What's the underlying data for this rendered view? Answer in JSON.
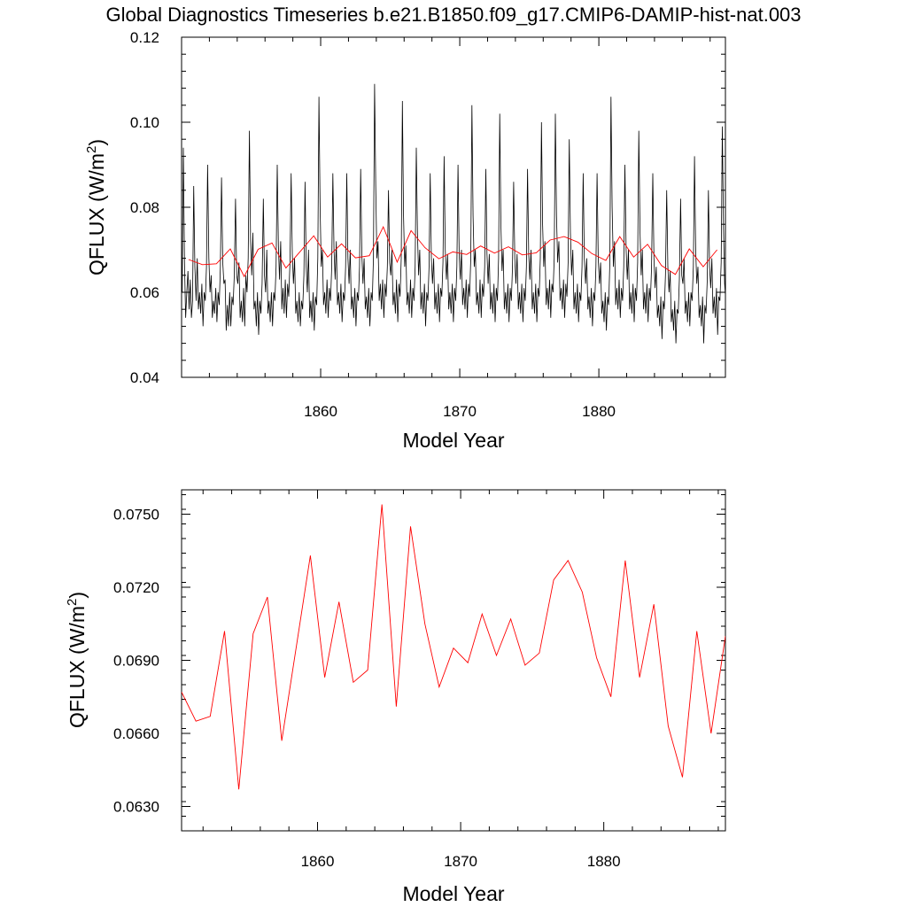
{
  "title": "Global Diagnostics Timeseries b.e21.B1850.f09_g17.CMIP6-DAMIP-hist-nat.003",
  "colors": {
    "monthly": "#000000",
    "annual": "#ff0000"
  },
  "chart_data": [
    {
      "type": "line",
      "xlabel": "Model Year",
      "ylabel": "QFLUX (W/m2)",
      "ylabel_main": "QFLUX (W/m",
      "ylabel_sup": "2",
      "ylabel_close": ")",
      "xlim": [
        1850,
        1889.1
      ],
      "ylim": [
        0.04,
        0.12
      ],
      "xticks": [
        1860,
        1870,
        1880
      ],
      "xtick_labels": [
        "1860",
        "1870",
        "1880"
      ],
      "yticks": [
        0.04,
        0.06,
        0.08,
        0.1,
        0.12
      ],
      "ytick_labels": [
        "0.04",
        "0.06",
        "0.08",
        "0.10",
        "0.12"
      ],
      "grid": false,
      "series": [
        {
          "style": "monthly",
          "values": [
            0.06,
            0.094,
            0.067,
            0.054,
            0.06,
            0.065,
            0.056,
            0.063,
            0.054,
            0.058,
            0.085,
            0.066,
            0.058,
            0.068,
            0.056,
            0.06,
            0.055,
            0.062,
            0.052,
            0.06,
            0.058,
            0.066,
            0.09,
            0.068,
            0.06,
            0.064,
            0.054,
            0.058,
            0.055,
            0.061,
            0.053,
            0.06,
            0.057,
            0.066,
            0.087,
            0.067,
            0.062,
            0.063,
            0.051,
            0.057,
            0.052,
            0.06,
            0.052,
            0.059,
            0.057,
            0.064,
            0.082,
            0.064,
            0.062,
            0.067,
            0.054,
            0.058,
            0.053,
            0.061,
            0.052,
            0.064,
            0.06,
            0.068,
            0.098,
            0.072,
            0.064,
            0.074,
            0.056,
            0.058,
            0.052,
            0.06,
            0.05,
            0.058,
            0.055,
            0.062,
            0.082,
            0.064,
            0.06,
            0.07,
            0.055,
            0.058,
            0.053,
            0.06,
            0.052,
            0.06,
            0.058,
            0.066,
            0.09,
            0.071,
            0.063,
            0.072,
            0.056,
            0.061,
            0.055,
            0.063,
            0.054,
            0.062,
            0.059,
            0.067,
            0.088,
            0.069,
            0.062,
            0.068,
            0.055,
            0.058,
            0.053,
            0.06,
            0.052,
            0.058,
            0.056,
            0.064,
            0.086,
            0.066,
            0.06,
            0.07,
            0.054,
            0.058,
            0.053,
            0.06,
            0.051,
            0.059,
            0.057,
            0.068,
            0.106,
            0.08,
            0.066,
            0.07,
            0.057,
            0.06,
            0.055,
            0.063,
            0.054,
            0.061,
            0.058,
            0.066,
            0.088,
            0.07,
            0.063,
            0.072,
            0.057,
            0.06,
            0.055,
            0.062,
            0.053,
            0.06,
            0.058,
            0.066,
            0.088,
            0.068,
            0.062,
            0.07,
            0.056,
            0.059,
            0.054,
            0.061,
            0.052,
            0.06,
            0.058,
            0.066,
            0.089,
            0.069,
            0.062,
            0.068,
            0.056,
            0.059,
            0.054,
            0.061,
            0.052,
            0.06,
            0.058,
            0.068,
            0.109,
            0.085,
            0.068,
            0.072,
            0.058,
            0.062,
            0.056,
            0.063,
            0.054,
            0.062,
            0.059,
            0.066,
            0.084,
            0.067,
            0.064,
            0.07,
            0.057,
            0.06,
            0.055,
            0.063,
            0.053,
            0.062,
            0.059,
            0.068,
            0.105,
            0.078,
            0.066,
            0.071,
            0.057,
            0.06,
            0.055,
            0.063,
            0.054,
            0.061,
            0.058,
            0.066,
            0.094,
            0.074,
            0.064,
            0.07,
            0.056,
            0.06,
            0.055,
            0.062,
            0.052,
            0.06,
            0.058,
            0.066,
            0.088,
            0.068,
            0.062,
            0.068,
            0.056,
            0.06,
            0.055,
            0.062,
            0.053,
            0.061,
            0.059,
            0.067,
            0.092,
            0.07,
            0.063,
            0.069,
            0.056,
            0.06,
            0.055,
            0.062,
            0.053,
            0.061,
            0.058,
            0.066,
            0.09,
            0.069,
            0.063,
            0.07,
            0.057,
            0.061,
            0.056,
            0.063,
            0.054,
            0.062,
            0.059,
            0.068,
            0.104,
            0.078,
            0.066,
            0.07,
            0.057,
            0.06,
            0.055,
            0.063,
            0.054,
            0.062,
            0.059,
            0.066,
            0.089,
            0.069,
            0.062,
            0.069,
            0.056,
            0.06,
            0.055,
            0.062,
            0.053,
            0.061,
            0.058,
            0.068,
            0.102,
            0.076,
            0.065,
            0.07,
            0.056,
            0.06,
            0.055,
            0.062,
            0.053,
            0.061,
            0.058,
            0.066,
            0.086,
            0.068,
            0.062,
            0.069,
            0.056,
            0.06,
            0.055,
            0.062,
            0.053,
            0.061,
            0.058,
            0.066,
            0.089,
            0.069,
            0.063,
            0.07,
            0.056,
            0.06,
            0.055,
            0.062,
            0.053,
            0.061,
            0.059,
            0.068,
            0.1,
            0.076,
            0.066,
            0.072,
            0.057,
            0.061,
            0.056,
            0.063,
            0.054,
            0.062,
            0.06,
            0.068,
            0.102,
            0.078,
            0.067,
            0.072,
            0.058,
            0.061,
            0.056,
            0.063,
            0.054,
            0.062,
            0.059,
            0.067,
            0.096,
            0.074,
            0.064,
            0.07,
            0.056,
            0.06,
            0.055,
            0.062,
            0.053,
            0.06,
            0.058,
            0.066,
            0.088,
            0.068,
            0.062,
            0.068,
            0.056,
            0.059,
            0.054,
            0.061,
            0.052,
            0.06,
            0.058,
            0.066,
            0.088,
            0.068,
            0.062,
            0.067,
            0.055,
            0.058,
            0.053,
            0.06,
            0.051,
            0.059,
            0.057,
            0.067,
            0.106,
            0.08,
            0.066,
            0.072,
            0.057,
            0.061,
            0.056,
            0.063,
            0.054,
            0.061,
            0.058,
            0.066,
            0.09,
            0.07,
            0.063,
            0.07,
            0.056,
            0.06,
            0.055,
            0.062,
            0.053,
            0.061,
            0.058,
            0.067,
            0.098,
            0.074,
            0.064,
            0.07,
            0.056,
            0.06,
            0.055,
            0.062,
            0.053,
            0.061,
            0.058,
            0.066,
            0.088,
            0.068,
            0.061,
            0.066,
            0.054,
            0.057,
            0.052,
            0.059,
            0.049,
            0.058,
            0.056,
            0.064,
            0.084,
            0.066,
            0.06,
            0.065,
            0.053,
            0.056,
            0.051,
            0.058,
            0.048,
            0.056,
            0.055,
            0.063,
            0.082,
            0.064,
            0.062,
            0.068,
            0.055,
            0.058,
            0.053,
            0.06,
            0.052,
            0.06,
            0.058,
            0.066,
            0.092,
            0.07,
            0.062,
            0.066,
            0.054,
            0.057,
            0.052,
            0.059,
            0.048,
            0.057,
            0.055,
            0.063,
            0.084,
            0.066,
            0.061,
            0.068,
            0.055,
            0.059,
            0.054,
            0.061,
            0.05,
            0.059,
            0.058,
            0.067,
            0.099,
            0.075,
            0.062,
            0.058,
            0.052,
            0.047,
            0.061
          ]
        },
        {
          "style": "annual",
          "x": [
            1850.5,
            1851.5,
            1852.5,
            1853.5,
            1854.5,
            1855.5,
            1856.5,
            1857.5,
            1858.5,
            1859.5,
            1860.5,
            1861.5,
            1862.5,
            1863.5,
            1864.5,
            1865.5,
            1866.5,
            1867.5,
            1868.5,
            1869.5,
            1870.5,
            1871.5,
            1872.5,
            1873.5,
            1874.5,
            1875.5,
            1876.5,
            1877.5,
            1878.5,
            1879.5,
            1880.5,
            1881.5,
            1882.5,
            1883.5,
            1884.5,
            1885.5,
            1886.5,
            1887.5,
            1888.5
          ],
          "values": [
            0.0677,
            0.0665,
            0.0667,
            0.0702,
            0.0637,
            0.0701,
            0.0716,
            0.0657,
            0.0695,
            0.0733,
            0.0683,
            0.0714,
            0.0681,
            0.0686,
            0.0754,
            0.0671,
            0.0745,
            0.0705,
            0.0679,
            0.0695,
            0.0689,
            0.0709,
            0.0692,
            0.0707,
            0.0688,
            0.0693,
            0.0723,
            0.0731,
            0.0718,
            0.0691,
            0.0675,
            0.0731,
            0.0683,
            0.0713,
            0.0663,
            0.0642,
            0.0702,
            0.066,
            0.07
          ]
        }
      ]
    },
    {
      "type": "line",
      "xlabel": "Model Year",
      "ylabel": "QFLUX (W/m2)",
      "ylabel_main": "QFLUX (W/m",
      "ylabel_sup": "2",
      "ylabel_close": ")",
      "xlim": [
        1850.5,
        1888.5
      ],
      "ylim": [
        0.062,
        0.076
      ],
      "xticks": [
        1860,
        1870,
        1880
      ],
      "xtick_labels": [
        "1860",
        "1870",
        "1880"
      ],
      "yticks": [
        0.063,
        0.066,
        0.069,
        0.072,
        0.075
      ],
      "ytick_labels": [
        "0.0630",
        "0.0660",
        "0.0690",
        "0.0720",
        "0.0750"
      ],
      "grid": false,
      "series": [
        {
          "style": "annual",
          "x": [
            1850.5,
            1851.5,
            1852.5,
            1853.5,
            1854.5,
            1855.5,
            1856.5,
            1857.5,
            1858.5,
            1859.5,
            1860.5,
            1861.5,
            1862.5,
            1863.5,
            1864.5,
            1865.5,
            1866.5,
            1867.5,
            1868.5,
            1869.5,
            1870.5,
            1871.5,
            1872.5,
            1873.5,
            1874.5,
            1875.5,
            1876.5,
            1877.5,
            1878.5,
            1879.5,
            1880.5,
            1881.5,
            1882.5,
            1883.5,
            1884.5,
            1885.5,
            1886.5,
            1887.5,
            1888.5
          ],
          "values": [
            0.0677,
            0.0665,
            0.0667,
            0.0702,
            0.0637,
            0.0701,
            0.0716,
            0.0657,
            0.0695,
            0.0733,
            0.0683,
            0.0714,
            0.0681,
            0.0686,
            0.0754,
            0.0671,
            0.0745,
            0.0705,
            0.0679,
            0.0695,
            0.0689,
            0.0709,
            0.0692,
            0.0707,
            0.0688,
            0.0693,
            0.0723,
            0.0731,
            0.0718,
            0.0691,
            0.0675,
            0.0731,
            0.0683,
            0.0713,
            0.0663,
            0.0642,
            0.0702,
            0.066,
            0.07
          ]
        }
      ]
    }
  ]
}
